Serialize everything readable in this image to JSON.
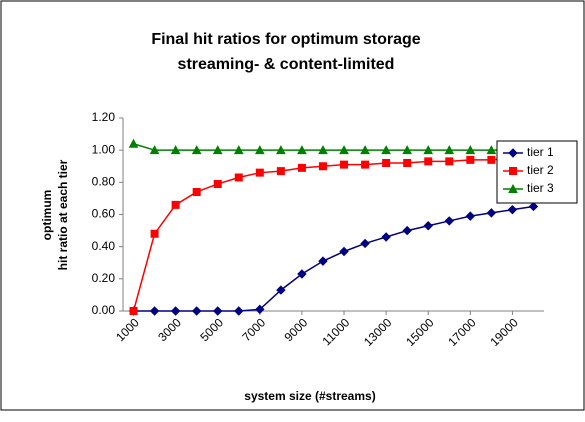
{
  "chart_data": {
    "type": "line",
    "title": [
      "Final hit ratios for optimum storage",
      "streaming- & content-limited"
    ],
    "xlabel": "system size (#streams)",
    "ylabel": [
      "optimum",
      "hit ratio at each tier"
    ],
    "x": [
      1000,
      2000,
      3000,
      4000,
      5000,
      6000,
      7000,
      8000,
      9000,
      10000,
      11000,
      12000,
      13000,
      14000,
      15000,
      16000,
      17000,
      18000,
      19000,
      20000
    ],
    "xlim": [
      500,
      20500
    ],
    "xticks": [
      1000,
      3000,
      5000,
      7000,
      9000,
      11000,
      13000,
      15000,
      17000,
      19000
    ],
    "ylim": [
      0,
      1.2
    ],
    "yticks": [
      {
        "value": 0,
        "label": "0.00"
      },
      {
        "value": 0.2,
        "label": "0.20"
      },
      {
        "value": 0.4,
        "label": "0.40"
      },
      {
        "value": 0.6,
        "label": "0.60"
      },
      {
        "value": 0.8,
        "label": "0.80"
      },
      {
        "value": 1,
        "label": "1.00"
      },
      {
        "value": 1.2,
        "label": "1.20"
      }
    ],
    "grid": false,
    "legend": "right",
    "series": [
      {
        "name": "tier 1",
        "color": "#000080",
        "marker": "diamond",
        "values": [
          0,
          0,
          0,
          0,
          0,
          0,
          0.01,
          0.13,
          0.23,
          0.31,
          0.37,
          0.42,
          0.46,
          0.5,
          0.53,
          0.56,
          0.59,
          0.61,
          0.63,
          0.65
        ]
      },
      {
        "name": "tier 2",
        "color": "#ff0000",
        "marker": "square",
        "values": [
          0,
          0.48,
          0.66,
          0.74,
          0.79,
          0.83,
          0.86,
          0.87,
          0.89,
          0.9,
          0.91,
          0.91,
          0.92,
          0.92,
          0.93,
          0.93,
          0.94,
          0.94,
          0.95,
          0.95
        ]
      },
      {
        "name": "tier 3",
        "color": "#008000",
        "marker": "triangle",
        "values": [
          1.04,
          1,
          1,
          1,
          1,
          1,
          1,
          1,
          1,
          1,
          1,
          1,
          1,
          1,
          1,
          1,
          1,
          1,
          1,
          1
        ]
      }
    ]
  }
}
